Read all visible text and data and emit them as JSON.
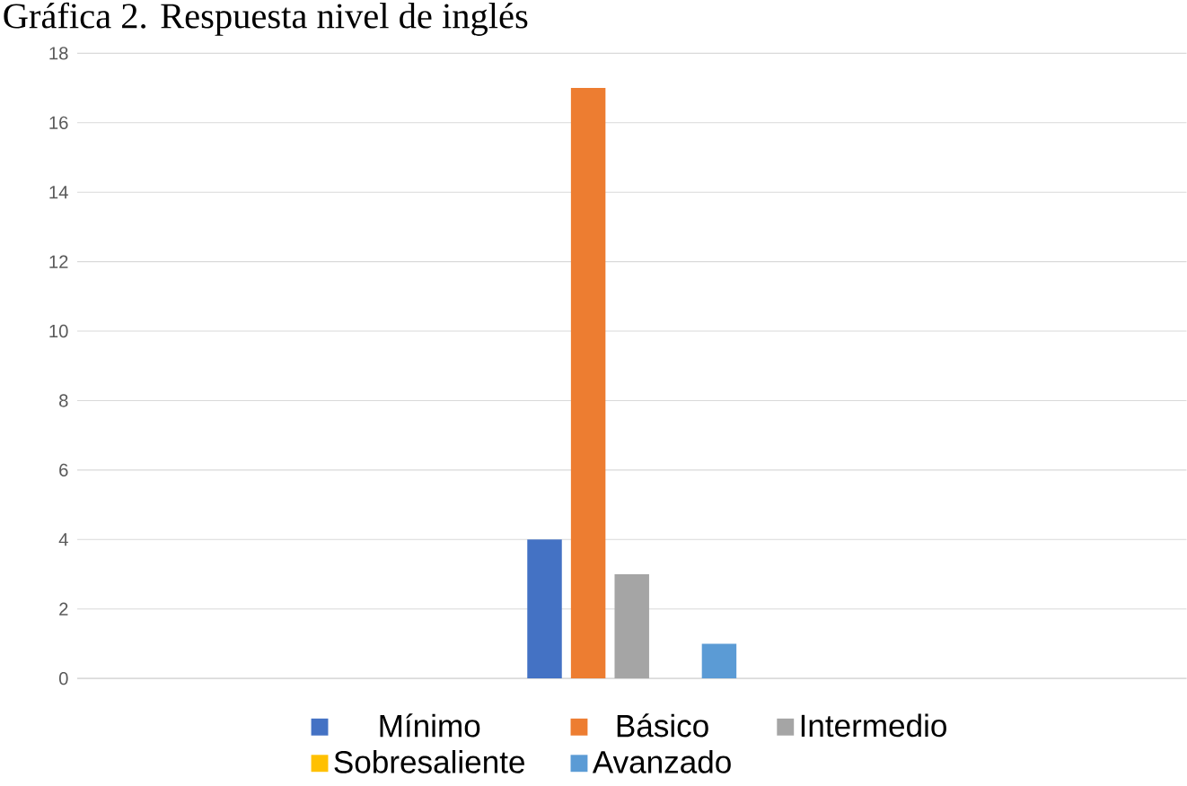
{
  "chart_data": {
    "type": "bar",
    "title": "Gráfica 2. Respuesta nivel de inglés",
    "categories": [
      null
    ],
    "series": [
      {
        "name": "Mínimo",
        "color": "#4472c4",
        "values": [
          4
        ]
      },
      {
        "name": "Básico",
        "color": "#ed7d31",
        "values": [
          17
        ]
      },
      {
        "name": "Intermedio",
        "color": "#a5a5a5",
        "values": [
          3
        ]
      },
      {
        "name": "Sobresaliente",
        "color": "#ffc000",
        "values": [
          0
        ]
      },
      {
        "name": "Avanzado",
        "color": "#5b9bd5",
        "values": [
          1
        ]
      }
    ],
    "ylim": [
      0,
      18
    ],
    "yticks": [
      0,
      2,
      4,
      6,
      8,
      10,
      12,
      14,
      16,
      18
    ],
    "grid": "y",
    "legend": "bottom"
  }
}
